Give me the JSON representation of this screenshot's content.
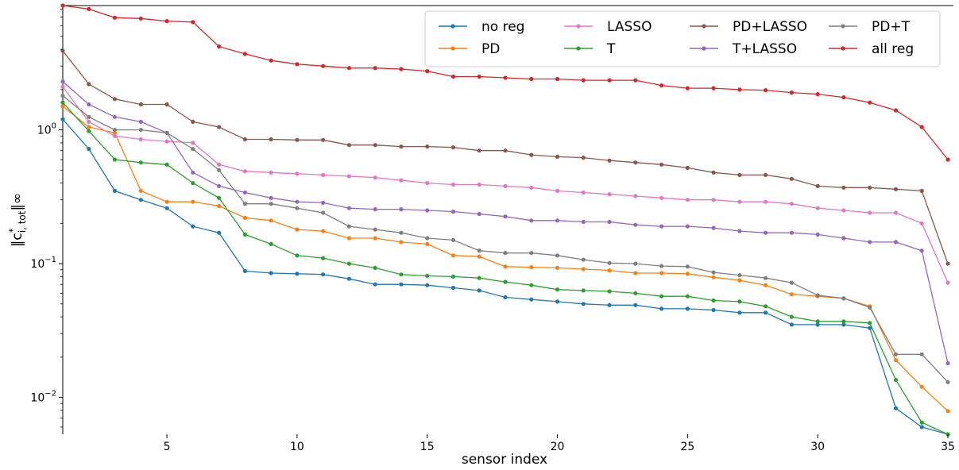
{
  "chart_data": {
    "type": "line",
    "xlabel": "sensor index",
    "ylabel": "||c*i,tot||∞",
    "ylabel_parts": {
      "base": "‖c",
      "sup": "*",
      "sub": "i, tot",
      "tail": "‖∞"
    },
    "y_scale": "log",
    "xlim": [
      1,
      35
    ],
    "ylim": [
      0.0053,
      8.5
    ],
    "xticks": [
      5,
      10,
      15,
      20,
      25,
      30,
      35
    ],
    "xtick_labels": [
      "5",
      "10",
      "15",
      "20",
      "25",
      "30",
      "35"
    ],
    "yticks": [
      1,
      0.1,
      0.01
    ],
    "ytick_labels": [
      {
        "base": "10",
        "exp": "0"
      },
      {
        "base": "10",
        "exp": "−1"
      },
      {
        "base": "10",
        "exp": "−2"
      }
    ],
    "grid": false,
    "legend_position": "top-right",
    "x": [
      1,
      2,
      3,
      4,
      5,
      6,
      7,
      8,
      9,
      10,
      11,
      12,
      13,
      14,
      15,
      16,
      17,
      18,
      19,
      20,
      21,
      22,
      23,
      24,
      25,
      26,
      27,
      28,
      29,
      30,
      31,
      32,
      33,
      34,
      35
    ],
    "series": [
      {
        "name": "no reg",
        "color": "#1f77b4",
        "values": [
          1.2,
          0.72,
          0.35,
          0.3,
          0.26,
          0.19,
          0.17,
          0.088,
          0.085,
          0.084,
          0.083,
          0.077,
          0.07,
          0.07,
          0.069,
          0.066,
          0.063,
          0.056,
          0.054,
          0.052,
          0.05,
          0.049,
          0.049,
          0.046,
          0.046,
          0.045,
          0.043,
          0.043,
          0.035,
          0.035,
          0.035,
          0.033,
          0.0083,
          0.006,
          0.0053
        ]
      },
      {
        "name": "PD",
        "color": "#ff7f0e",
        "values": [
          1.5,
          1.05,
          0.95,
          0.35,
          0.29,
          0.29,
          0.27,
          0.22,
          0.21,
          0.18,
          0.175,
          0.155,
          0.155,
          0.145,
          0.14,
          0.115,
          0.113,
          0.095,
          0.094,
          0.093,
          0.091,
          0.089,
          0.085,
          0.085,
          0.084,
          0.079,
          0.075,
          0.069,
          0.059,
          0.057,
          0.055,
          0.048,
          0.019,
          0.012,
          0.0079
        ]
      },
      {
        "name": "T",
        "color": "#2ca02c",
        "values": [
          1.6,
          0.98,
          0.6,
          0.57,
          0.55,
          0.4,
          0.31,
          0.165,
          0.14,
          0.115,
          0.11,
          0.1,
          0.093,
          0.083,
          0.081,
          0.08,
          0.078,
          0.073,
          0.069,
          0.064,
          0.063,
          0.062,
          0.06,
          0.057,
          0.057,
          0.053,
          0.052,
          0.048,
          0.04,
          0.037,
          0.037,
          0.036,
          0.0135,
          0.0065,
          0.0053
        ]
      },
      {
        "name": "LASSO",
        "color": "#e377c2",
        "values": [
          2.1,
          1.15,
          0.9,
          0.85,
          0.82,
          0.8,
          0.55,
          0.49,
          0.48,
          0.47,
          0.46,
          0.45,
          0.44,
          0.42,
          0.4,
          0.39,
          0.39,
          0.38,
          0.37,
          0.35,
          0.34,
          0.33,
          0.32,
          0.31,
          0.3,
          0.3,
          0.29,
          0.29,
          0.28,
          0.26,
          0.25,
          0.24,
          0.24,
          0.2,
          0.072
        ]
      },
      {
        "name": "T+LASSO",
        "color": "#9467bd",
        "values": [
          2.3,
          1.55,
          1.25,
          1.15,
          0.95,
          0.48,
          0.38,
          0.34,
          0.31,
          0.29,
          0.285,
          0.26,
          0.255,
          0.255,
          0.25,
          0.245,
          0.235,
          0.225,
          0.21,
          0.21,
          0.205,
          0.205,
          0.195,
          0.19,
          0.19,
          0.185,
          0.175,
          0.17,
          0.17,
          0.165,
          0.155,
          0.145,
          0.145,
          0.125,
          0.018
        ]
      },
      {
        "name": "PD+LASSO",
        "color": "#8c564b",
        "values": [
          3.9,
          2.2,
          1.7,
          1.55,
          1.55,
          1.15,
          1.05,
          0.85,
          0.85,
          0.84,
          0.84,
          0.77,
          0.77,
          0.75,
          0.75,
          0.74,
          0.7,
          0.7,
          0.65,
          0.63,
          0.62,
          0.59,
          0.57,
          0.55,
          0.52,
          0.48,
          0.46,
          0.46,
          0.43,
          0.38,
          0.37,
          0.37,
          0.36,
          0.35,
          0.1
        ]
      },
      {
        "name": "PD+T",
        "color": "#7f7f7f",
        "values": [
          1.8,
          1.25,
          1.0,
          1.0,
          0.95,
          0.72,
          0.5,
          0.28,
          0.28,
          0.26,
          0.24,
          0.19,
          0.18,
          0.17,
          0.155,
          0.15,
          0.125,
          0.12,
          0.12,
          0.115,
          0.107,
          0.101,
          0.1,
          0.096,
          0.095,
          0.086,
          0.082,
          0.078,
          0.072,
          0.058,
          0.055,
          0.047,
          0.021,
          0.021,
          0.013
        ]
      },
      {
        "name": "all reg",
        "color": "#d62728",
        "values": [
          8.5,
          8.0,
          6.9,
          6.8,
          6.5,
          6.4,
          4.2,
          3.7,
          3.3,
          3.1,
          3.0,
          2.9,
          2.9,
          2.85,
          2.75,
          2.5,
          2.5,
          2.45,
          2.4,
          2.4,
          2.35,
          2.35,
          2.35,
          2.15,
          2.05,
          2.05,
          2.0,
          1.98,
          1.9,
          1.85,
          1.75,
          1.6,
          1.4,
          1.05,
          0.6
        ]
      }
    ]
  }
}
